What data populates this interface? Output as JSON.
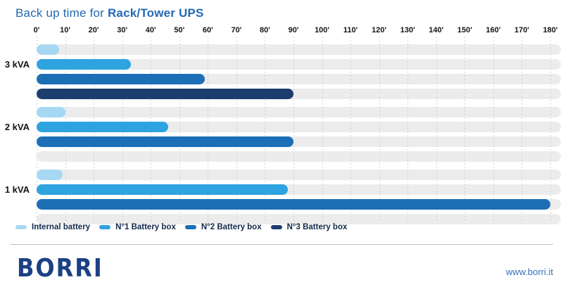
{
  "title": {
    "prefix": "Back up time for ",
    "bold": "Rack/Tower UPS"
  },
  "footer": {
    "logo_text": "BORRI",
    "website": "www.borri.it"
  },
  "colors": {
    "title": "#2369B3",
    "axis_text": "#141414",
    "track": "#ECECEC",
    "grid": "#C6C6C6",
    "legend_text": "#12294A",
    "divider": "#BCC0C6",
    "logo": "#1C4084",
    "website": "#3370B5"
  },
  "chart_data": {
    "type": "bar",
    "orientation": "horizontal",
    "title": "Back up time for Rack/Tower UPS",
    "unit": "minutes",
    "categories": [
      "3 kVA",
      "2 kVA",
      "1 kVA"
    ],
    "series": [
      {
        "name": "Internal battery",
        "color": "#A6D8F3",
        "values": [
          8,
          10,
          9
        ]
      },
      {
        "name": "N°1 Battery box",
        "color": "#2EA3DF",
        "values": [
          33,
          46,
          88
        ]
      },
      {
        "name": "N°2 Battery box",
        "color": "#1C6FB5",
        "values": [
          59,
          90,
          180
        ]
      },
      {
        "name": "N°3 Battery box",
        "color": "#1D3D6E",
        "values": [
          90,
          null,
          null
        ]
      }
    ],
    "xlim": [
      0,
      180
    ],
    "tick_step": 10,
    "tick_labels": [
      "0'",
      "10'",
      "20'",
      "30'",
      "40'",
      "50'",
      "60'",
      "70'",
      "80'",
      "90'",
      "100'",
      "110'",
      "120'",
      "130'",
      "140'",
      "150'",
      "160'",
      "170'",
      "180'"
    ],
    "grid": "dotted-vertical",
    "legend_position": "bottom",
    "track_full_width": true
  }
}
